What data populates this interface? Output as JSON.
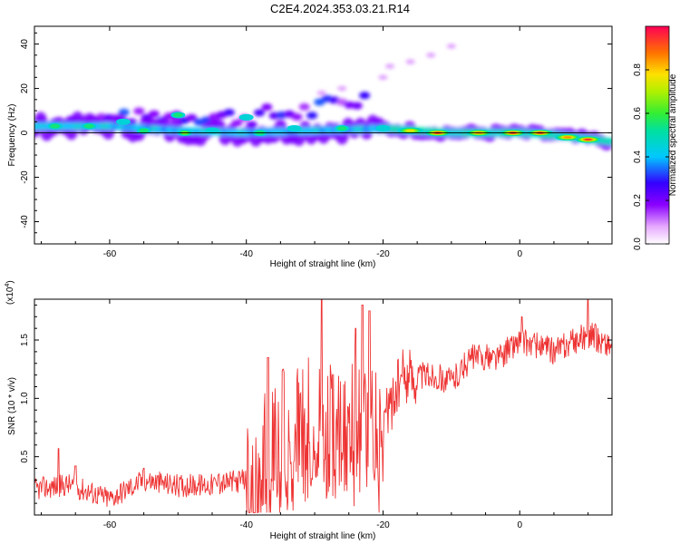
{
  "title": "C2E4.2024.353.03.21.R14",
  "chart_data": [
    {
      "type": "heatmap",
      "xlabel": "Height of straight line (km)",
      "ylabel": "Frequency (Hz)",
      "xlim": [
        -71,
        13.5
      ],
      "ylim": [
        -50,
        48
      ],
      "xticks": [
        -60,
        -40,
        -20,
        0
      ],
      "yticks": [
        40,
        20,
        0,
        -20,
        -40
      ],
      "colorbar": {
        "label": "Normalized spectral amplitude",
        "range": [
          0,
          1
        ],
        "ticks": [
          "0.0",
          "0.2",
          "0.4",
          "0.6",
          "0.8"
        ]
      },
      "ridge": [
        {
          "x": -71,
          "y": 3
        },
        {
          "x": -60,
          "y": 3
        },
        {
          "x": -50,
          "y": 1
        },
        {
          "x": -40,
          "y": 0
        },
        {
          "x": -30,
          "y": 1
        },
        {
          "x": -20,
          "y": 2
        },
        {
          "x": -10,
          "y": 0
        },
        {
          "x": 0,
          "y": 0
        },
        {
          "x": 5,
          "y": -1
        },
        {
          "x": 13.5,
          "y": -4
        }
      ],
      "upper_band": [
        {
          "x": -70,
          "y": 5
        },
        {
          "x": -50,
          "y": 8
        },
        {
          "x": -40,
          "y": 7
        },
        {
          "x": -30,
          "y": 10
        },
        {
          "x": -24,
          "y": 15
        }
      ],
      "scattered_high": [
        {
          "x": -29,
          "y": 18
        },
        {
          "x": -26,
          "y": 20
        },
        {
          "x": -20,
          "y": 25
        },
        {
          "x": -19,
          "y": 30
        },
        {
          "x": -16,
          "y": 32
        },
        {
          "x": -13,
          "y": 35
        },
        {
          "x": -10,
          "y": 39
        }
      ],
      "peaks": [
        {
          "x": -68,
          "y": 3,
          "v": 0.55
        },
        {
          "x": -63,
          "y": 3,
          "v": 0.6
        },
        {
          "x": -58,
          "y": 5,
          "v": 0.5
        },
        {
          "x": -55,
          "y": 1,
          "v": 0.55
        },
        {
          "x": -50,
          "y": 8,
          "v": 0.55
        },
        {
          "x": -49,
          "y": 0,
          "v": 0.65
        },
        {
          "x": -45,
          "y": 1,
          "v": 0.5
        },
        {
          "x": -40,
          "y": 7,
          "v": 0.45
        },
        {
          "x": -38,
          "y": 0,
          "v": 0.6
        },
        {
          "x": -33,
          "y": 2,
          "v": 0.5
        },
        {
          "x": -26,
          "y": 2,
          "v": 0.55
        },
        {
          "x": -20,
          "y": 2,
          "v": 0.5
        },
        {
          "x": -16,
          "y": 1,
          "v": 0.8
        },
        {
          "x": -12,
          "y": 0,
          "v": 0.95
        },
        {
          "x": -6,
          "y": 0,
          "v": 0.9
        },
        {
          "x": -1,
          "y": 0,
          "v": 1.0
        },
        {
          "x": 3,
          "y": 0,
          "v": 1.0
        },
        {
          "x": 7,
          "y": -2,
          "v": 0.85
        },
        {
          "x": 10,
          "y": -3,
          "v": 0.95
        }
      ]
    },
    {
      "type": "line",
      "xlabel": "Height of straight line (km)",
      "ylabel": "SNR (10 * v/v)",
      "exponent_label": "(x10",
      "exponent": "4",
      "xlim": [
        -71,
        13.5
      ],
      "ylim": [
        0,
        1.85
      ],
      "xticks": [
        -60,
        -40,
        -20,
        0
      ],
      "yticks": [
        "0.5",
        "1.0",
        "1.5"
      ],
      "color": "#ee3333",
      "envelope": [
        {
          "x": -71,
          "y": 0.22
        },
        {
          "x": -66,
          "y": 0.26
        },
        {
          "x": -60,
          "y": 0.14
        },
        {
          "x": -55,
          "y": 0.3
        },
        {
          "x": -50,
          "y": 0.25
        },
        {
          "x": -45,
          "y": 0.26
        },
        {
          "x": -40,
          "y": 0.3
        },
        {
          "x": -36,
          "y": 0.75
        },
        {
          "x": -30,
          "y": 0.95
        },
        {
          "x": -25,
          "y": 0.85
        },
        {
          "x": -20,
          "y": 0.8
        },
        {
          "x": -17,
          "y": 1.2
        },
        {
          "x": -13,
          "y": 1.2
        },
        {
          "x": -10,
          "y": 1.15
        },
        {
          "x": -7,
          "y": 1.35
        },
        {
          "x": -3,
          "y": 1.35
        },
        {
          "x": 0,
          "y": 1.5
        },
        {
          "x": 5,
          "y": 1.4
        },
        {
          "x": 10,
          "y": 1.55
        },
        {
          "x": 13.5,
          "y": 1.45
        }
      ],
      "spikes": [
        {
          "x": -67.5,
          "y": 0.57
        },
        {
          "x": -65,
          "y": 0.42
        },
        {
          "x": -55,
          "y": 0.4
        },
        {
          "x": -44,
          "y": 0.35
        },
        {
          "x": -36.8,
          "y": 1.35
        },
        {
          "x": -34.6,
          "y": 1.25
        },
        {
          "x": -29,
          "y": 1.85
        },
        {
          "x": -24,
          "y": 1.6
        },
        {
          "x": -23,
          "y": 1.8
        },
        {
          "x": -22,
          "y": 1.75
        },
        {
          "x": 0.3,
          "y": 1.7
        },
        {
          "x": 10,
          "y": 1.85
        }
      ]
    }
  ]
}
